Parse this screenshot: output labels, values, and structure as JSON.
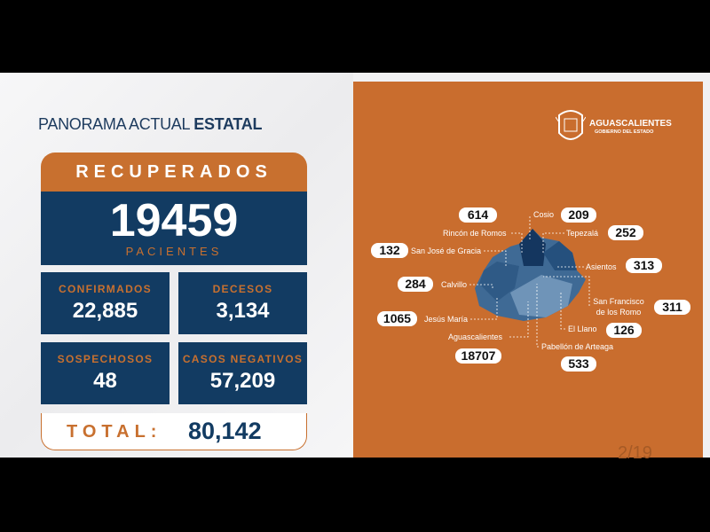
{
  "left": {
    "title_regular": "PANORAMA ACTUAL",
    "title_bold": "ESTATAL",
    "recuperados": {
      "label": "RECUPERADOS",
      "value": "19459",
      "unit": "PACIENTES"
    },
    "stats": [
      {
        "label": "CONFIRMADOS",
        "value": "22,885"
      },
      {
        "label": "DECESOS",
        "value": "3,134"
      },
      {
        "label": "SOSPECHOSOS",
        "value": "48"
      },
      {
        "label": "CASOS NEGATIVOS",
        "value": "57,209"
      }
    ],
    "total": {
      "label": "TOTAL:",
      "value": "80,142"
    }
  },
  "right": {
    "logo": {
      "name": "AGUASCALIENTES",
      "subtitle": "GOBIERNO DEL ESTADO"
    },
    "municipalities": [
      {
        "name": "Rincón de Romos",
        "value": "614"
      },
      {
        "name": "Cosio",
        "value": "209"
      },
      {
        "name": "Tepezalá",
        "value": "252"
      },
      {
        "name": "San José de Gracia",
        "value": "132"
      },
      {
        "name": "Asientos",
        "value": "313"
      },
      {
        "name": "Calvillo",
        "value": "284"
      },
      {
        "name": "San Francisco de los Romo",
        "value": "311"
      },
      {
        "name": "Jesús María",
        "value": "1065"
      },
      {
        "name": "El Llano",
        "value": "126"
      },
      {
        "name": "Aguascalientes",
        "value": "18707"
      },
      {
        "name": "Pabellón de Arteaga",
        "value": "533"
      }
    ],
    "page": "2/19"
  },
  "colors": {
    "orange": "#c96d2e",
    "navy": "#123b62"
  }
}
